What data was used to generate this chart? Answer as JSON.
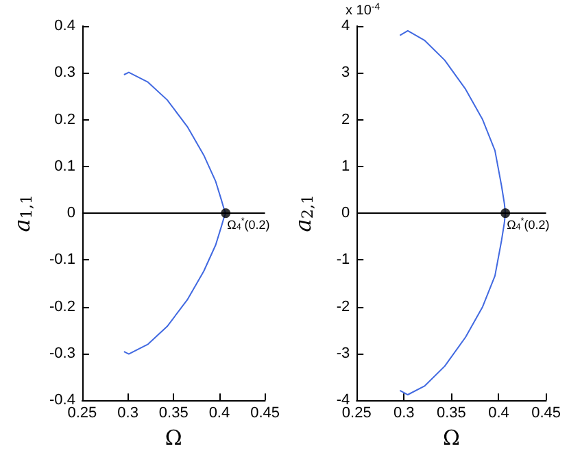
{
  "chart_data": [
    {
      "type": "line",
      "xlabel": "Ω",
      "ylabel": "a$_{1,1}$",
      "marker": "none",
      "grid": false,
      "xlim": [
        0.25,
        0.45
      ],
      "xticks": [
        0.25,
        0.3,
        0.35,
        0.4,
        0.45
      ],
      "ylim": [
        -0.4,
        0.4
      ],
      "yticks": [
        -0.4,
        -0.3,
        -0.2,
        -0.1,
        0,
        0.1,
        0.2,
        0.3,
        0.4
      ],
      "ref_lines": [
        {
          "axis": "y",
          "value": 0,
          "color": "#000000"
        }
      ],
      "annotations": [
        {
          "text": "Ω$_{4}$$^{*}$(0.2)",
          "x": 0.407,
          "y": 0
        }
      ],
      "series": [
        {
          "color": "#4169e1",
          "x": [
            0.2957,
            0.301,
            0.322,
            0.343,
            0.365,
            0.383,
            0.396,
            0.402,
            0.405,
            0.407,
            0.405,
            0.402,
            0.396,
            0.383,
            0.365,
            0.343,
            0.322,
            0.301,
            0.2957
          ],
          "values": [
            -0.296,
            -0.301,
            -0.28,
            -0.242,
            -0.185,
            -0.124,
            -0.068,
            -0.03,
            -0.01,
            0,
            0.01,
            0.03,
            0.068,
            0.124,
            0.185,
            0.242,
            0.28,
            0.301,
            0.296
          ]
        },
        {
          "type": "scatter",
          "color": "#000000",
          "marker": "circle",
          "x": [
            0.407
          ],
          "values": [
            0
          ]
        }
      ]
    },
    {
      "type": "line",
      "xlabel": "Ω",
      "ylabel": "a$_{2,1}$",
      "marker": "none",
      "grid": false,
      "xlim": [
        0.25,
        0.45
      ],
      "xticks": [
        0.25,
        0.3,
        0.35,
        0.4,
        0.45
      ],
      "ylim": [
        -4,
        4
      ],
      "yticks": [
        -4,
        -3,
        -2,
        -1,
        0,
        1,
        2,
        3,
        4
      ],
      "ref_lines": [
        {
          "axis": "y",
          "value": 0,
          "color": "#000000"
        }
      ],
      "annotations": [
        "x 10$^{-4}$",
        {
          "text": "Ω$_{4}$$^{*}$(0.2)",
          "x": 0.407,
          "y": 0
        }
      ],
      "series": [
        {
          "color": "#4169e1",
          "x": [
            0.2957,
            0.304,
            0.322,
            0.343,
            0.365,
            0.383,
            0.396,
            0.403,
            0.406,
            0.407,
            0.406,
            0.403,
            0.396,
            0.383,
            0.365,
            0.343,
            0.322,
            0.304,
            0.2957
          ],
          "values": [
            -3.79,
            -3.88,
            -3.69,
            -3.27,
            -2.65,
            -2.0,
            -1.34,
            -0.58,
            -0.2,
            0,
            0.2,
            0.58,
            1.34,
            2.0,
            2.65,
            3.27,
            3.69,
            3.9,
            3.8
          ]
        },
        {
          "type": "scatter",
          "color": "#000000",
          "marker": "circle",
          "x": [
            0.407
          ],
          "values": [
            0
          ]
        }
      ]
    }
  ]
}
